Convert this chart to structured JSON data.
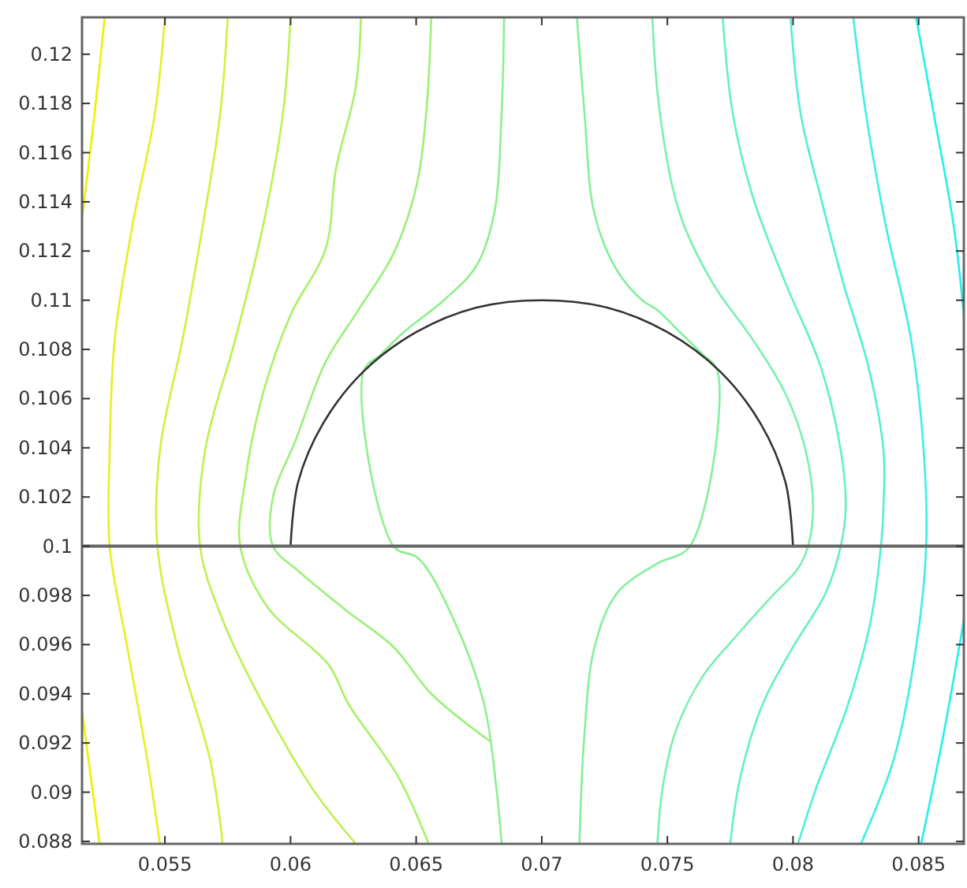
{
  "chart_data": {
    "type": "line",
    "xlim": [
      0.0517,
      0.0868
    ],
    "ylim": [
      0.0879,
      0.1215
    ],
    "xticks": [
      0.055,
      0.06,
      0.065,
      0.07,
      0.075,
      0.08,
      0.085
    ],
    "yticks": [
      0.088,
      0.09,
      0.092,
      0.094,
      0.096,
      0.098,
      0.1,
      0.102,
      0.104,
      0.106,
      0.108,
      0.11,
      0.112,
      0.114,
      0.116,
      0.118,
      0.12
    ],
    "ref_lines": [
      {
        "axis": "y",
        "value": 0.1,
        "color": "#666666"
      }
    ],
    "series": [
      {
        "color": "#f0f000",
        "x": [
          0.0526,
          0.0522,
          0.0517
        ],
        "values": [
          0.1215,
          0.1176,
          0.1133
        ]
      },
      {
        "color": "#f0f000",
        "x": [
          0.0517,
          0.0524
        ],
        "values": [
          0.0933,
          0.0879
        ]
      },
      {
        "color": "#e6f020",
        "x": [
          0.055,
          0.0546,
          0.0537,
          0.053,
          0.0528,
          0.0528,
          0.0535,
          0.0543,
          0.0548
        ],
        "values": [
          0.1215,
          0.1176,
          0.113,
          0.1084,
          0.1039,
          0.1,
          0.0959,
          0.0913,
          0.0879
        ]
      },
      {
        "color": "#d2f03c",
        "x": [
          0.0575,
          0.0572,
          0.0565,
          0.0557,
          0.0548,
          0.0547,
          0.0555,
          0.0568,
          0.0573
        ],
        "values": [
          0.1215,
          0.1176,
          0.113,
          0.1084,
          0.1039,
          0.1,
          0.0959,
          0.0913,
          0.0879
        ]
      },
      {
        "color": "#bef050",
        "x": [
          0.06,
          0.0597,
          0.0589,
          0.0578,
          0.0566,
          0.0564,
          0.0573,
          0.0589,
          0.0609,
          0.0626
        ],
        "values": [
          0.1215,
          0.1176,
          0.113,
          0.1084,
          0.1039,
          0.1,
          0.097,
          0.0936,
          0.0901,
          0.0879
        ]
      },
      {
        "color": "#aaf064",
        "x": [
          0.0628,
          0.0626,
          0.0618,
          0.0614,
          0.06,
          0.0589,
          0.0582,
          0.058,
          0.0591,
          0.0615,
          0.0623,
          0.0643,
          0.0655
        ],
        "values": [
          0.1215,
          0.1187,
          0.1153,
          0.1121,
          0.1094,
          0.1062,
          0.1027,
          0.1,
          0.0975,
          0.0952,
          0.0936,
          0.0906,
          0.0879
        ]
      },
      {
        "color": "#9af078",
        "x": [
          0.0656,
          0.0654,
          0.065,
          0.0641,
          0.0627,
          0.0614,
          0.0602,
          0.0593,
          0.0593,
          0.0603,
          0.0622,
          0.0641,
          0.0656,
          0.0679
        ],
        "values": [
          0.1215,
          0.1176,
          0.1146,
          0.1119,
          0.1096,
          0.1075,
          0.1043,
          0.102,
          0.1,
          0.099,
          0.0974,
          0.0959,
          0.094,
          0.0921
        ]
      },
      {
        "color": "#8cf08c",
        "x": [
          0.0685,
          0.0684,
          0.0681,
          0.0674,
          0.0661,
          0.0645,
          0.0636,
          0.0629,
          0.0641,
          0.0651,
          0.0665,
          0.0677,
          0.0682,
          0.0684
        ],
        "values": [
          0.1215,
          0.1176,
          0.1135,
          0.1114,
          0.11,
          0.1087,
          0.1078,
          0.1071,
          0.1,
          0.0995,
          0.097,
          0.0936,
          0.0901,
          0.0879
        ]
      },
      {
        "color": "#82f09c",
        "x": [
          0.0714,
          0.0717,
          0.0721,
          0.073,
          0.074,
          0.0746,
          0.0755,
          0.0764,
          0.077,
          0.0759,
          0.0746,
          0.073,
          0.0721,
          0.0717,
          0.0715
        ],
        "values": [
          0.1215,
          0.1176,
          0.1135,
          0.1112,
          0.11,
          0.1096,
          0.1087,
          0.1078,
          0.1071,
          0.1,
          0.0993,
          0.0981,
          0.0959,
          0.0924,
          0.0879
        ]
      },
      {
        "color": "#78f0b0",
        "x": [
          0.0744,
          0.0747,
          0.0755,
          0.0768,
          0.0784,
          0.0797,
          0.0805,
          0.0808,
          0.0806,
          0.0802,
          0.0791,
          0.0777,
          0.0764,
          0.0753,
          0.0748,
          0.0746
        ],
        "values": [
          0.1215,
          0.1176,
          0.1135,
          0.1107,
          0.1084,
          0.1062,
          0.1039,
          0.1016,
          0.1,
          0.0991,
          0.0979,
          0.0963,
          0.0947,
          0.0924,
          0.0901,
          0.0879
        ]
      },
      {
        "color": "#64f0c4",
        "x": [
          0.0772,
          0.0776,
          0.0784,
          0.0797,
          0.0811,
          0.0819,
          0.0821,
          0.0819,
          0.0813,
          0.08,
          0.0788,
          0.0779,
          0.0775
        ],
        "values": [
          0.1215,
          0.1176,
          0.1142,
          0.1107,
          0.1073,
          0.1039,
          0.1016,
          0.1,
          0.0981,
          0.0959,
          0.0936,
          0.0906,
          0.0879
        ]
      },
      {
        "color": "#50f0d4",
        "x": [
          0.0799,
          0.0803,
          0.0811,
          0.082,
          0.083,
          0.0836,
          0.0836,
          0.0835,
          0.0831,
          0.0822,
          0.0809,
          0.0802
        ],
        "values": [
          0.1215,
          0.1176,
          0.1142,
          0.1107,
          0.1073,
          0.1039,
          0.1016,
          0.1,
          0.097,
          0.0936,
          0.0901,
          0.0879
        ]
      },
      {
        "color": "#3cf0e4",
        "x": [
          0.0824,
          0.0829,
          0.0837,
          0.0847,
          0.0852,
          0.0853,
          0.0849,
          0.084,
          0.0827
        ],
        "values": [
          0.1215,
          0.1176,
          0.113,
          0.1084,
          0.1039,
          0.1,
          0.0959,
          0.0913,
          0.0879
        ]
      },
      {
        "color": "#20f0f0",
        "x": [
          0.0849,
          0.0856,
          0.0864,
          0.0868
        ],
        "values": [
          0.1215,
          0.1176,
          0.113,
          0.1094
        ]
      },
      {
        "color": "#20f0f0",
        "x": [
          0.0868,
          0.086,
          0.0851
        ],
        "values": [
          0.097,
          0.0924,
          0.0879
        ]
      },
      {
        "color": "#333333",
        "x": [
          0.08,
          0.0797,
          0.0787,
          0.0771,
          0.075,
          0.0726,
          0.07,
          0.0674,
          0.065,
          0.0629,
          0.0613,
          0.0603,
          0.06
        ],
        "values": [
          0.1,
          0.1026,
          0.105,
          0.1071,
          0.1087,
          0.1097,
          0.11,
          0.1097,
          0.1087,
          0.1071,
          0.105,
          0.1026,
          0.1
        ]
      }
    ]
  }
}
